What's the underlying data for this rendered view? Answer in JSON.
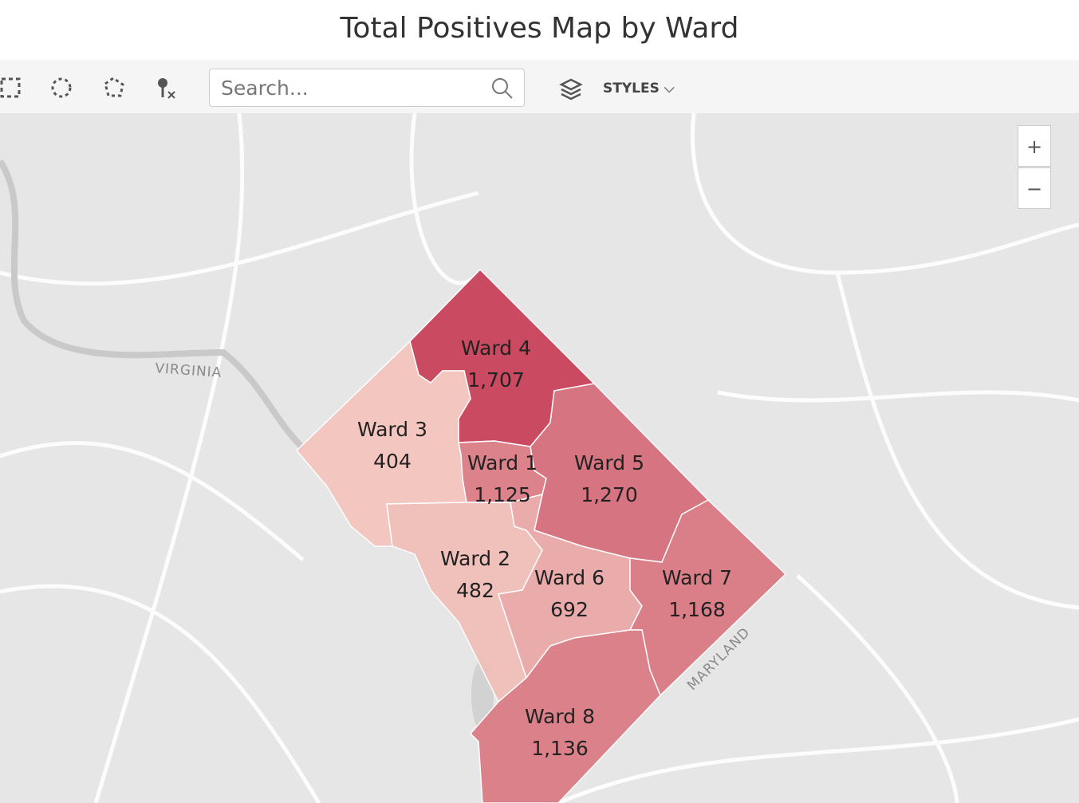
{
  "header": {
    "title": "Total Positives Map by Ward"
  },
  "toolbar": {
    "search_placeholder": "Search...",
    "styles": "STYLES"
  },
  "zoom": {
    "in": "+",
    "out": "−"
  },
  "map": {
    "region_labels": [
      "VIRGINIA",
      "MARYLAND"
    ],
    "color_scale": [
      "#f4c6be",
      "#c8425a"
    ],
    "wards": [
      {
        "name": "Ward 4",
        "value": 1707,
        "label": "1,707"
      },
      {
        "name": "Ward 3",
        "value": 404,
        "label": "404"
      },
      {
        "name": "Ward 1",
        "value": 1125,
        "label": "1,125"
      },
      {
        "name": "Ward 5",
        "value": 1270,
        "label": "1,270"
      },
      {
        "name": "Ward 2",
        "value": 482,
        "label": "482"
      },
      {
        "name": "Ward 6",
        "value": 692,
        "label": "692"
      },
      {
        "name": "Ward 7",
        "value": 1168,
        "label": "1,168"
      },
      {
        "name": "Ward 8",
        "value": 1136,
        "label": "1,136"
      }
    ]
  }
}
